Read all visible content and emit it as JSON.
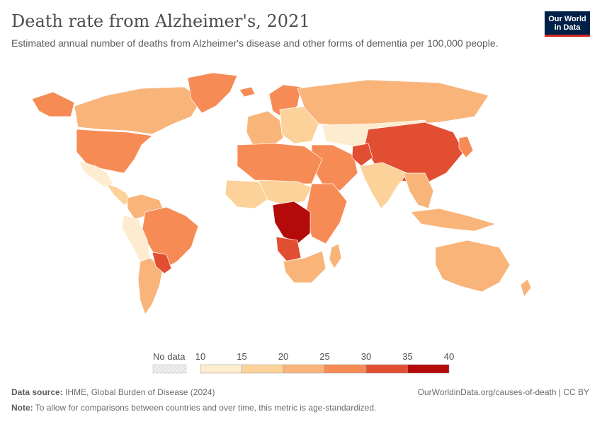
{
  "title": "Death rate from Alzheimer's, 2021",
  "subtitle": "Estimated annual number of deaths from Alzheimer's disease and other forms of dementia per 100,000 people.",
  "logo": {
    "line1": "Our World",
    "line2": "in Data"
  },
  "legend": {
    "no_data_label": "No data",
    "ticks": [
      "10",
      "15",
      "20",
      "25",
      "30",
      "35",
      "40"
    ],
    "colors": [
      "#fdeccf",
      "#fcd29a",
      "#f9b47a",
      "#f78b55",
      "#e24e32",
      "#b50a0a"
    ],
    "no_data_color": "#e6e6e6"
  },
  "map_data": {
    "regions": [
      {
        "name": "Canada",
        "bin": 2
      },
      {
        "name": "United States",
        "bin": 3
      },
      {
        "name": "Alaska",
        "bin": 3
      },
      {
        "name": "Greenland",
        "bin": 3
      },
      {
        "name": "Mexico",
        "bin": 0
      },
      {
        "name": "Central America",
        "bin": 1
      },
      {
        "name": "Colombia / Venezuela",
        "bin": 2
      },
      {
        "name": "Brazil",
        "bin": 3
      },
      {
        "name": "Peru / Bolivia",
        "bin": 0
      },
      {
        "name": "Argentina / Chile",
        "bin": 2
      },
      {
        "name": "Paraguay / Uruguay",
        "bin": 4
      },
      {
        "name": "Iceland / Scandinavia",
        "bin": 3
      },
      {
        "name": "Western Europe",
        "bin": 2
      },
      {
        "name": "Eastern Europe",
        "bin": 1
      },
      {
        "name": "Russia",
        "bin": 2
      },
      {
        "name": "Kazakhstan / Mongolia",
        "bin": 0
      },
      {
        "name": "China",
        "bin": 4
      },
      {
        "name": "Japan / Korea",
        "bin": 3
      },
      {
        "name": "Middle East",
        "bin": 3
      },
      {
        "name": "Afghanistan",
        "bin": 4
      },
      {
        "name": "India",
        "bin": 1
      },
      {
        "name": "Southeast Asia",
        "bin": 2
      },
      {
        "name": "Indonesia",
        "bin": 2
      },
      {
        "name": "North Africa",
        "bin": 3
      },
      {
        "name": "West Africa",
        "bin": 1
      },
      {
        "name": "Sahel",
        "bin": 1
      },
      {
        "name": "East Africa",
        "bin": 3
      },
      {
        "name": "Central Africa",
        "bin": 5
      },
      {
        "name": "Angola",
        "bin": 4
      },
      {
        "name": "Southern Africa",
        "bin": 2
      },
      {
        "name": "Madagascar",
        "bin": 2
      },
      {
        "name": "Australia",
        "bin": 2
      },
      {
        "name": "New Zealand",
        "bin": 2
      }
    ]
  },
  "footer": {
    "source_label": "Data source:",
    "source_text": "IHME, Global Burden of Disease (2024)",
    "url": "OurWorldinData.org/causes-of-death | CC BY",
    "note_label": "Note:",
    "note_text": "To allow for comparisons between countries and over time, this metric is age-standardized."
  }
}
